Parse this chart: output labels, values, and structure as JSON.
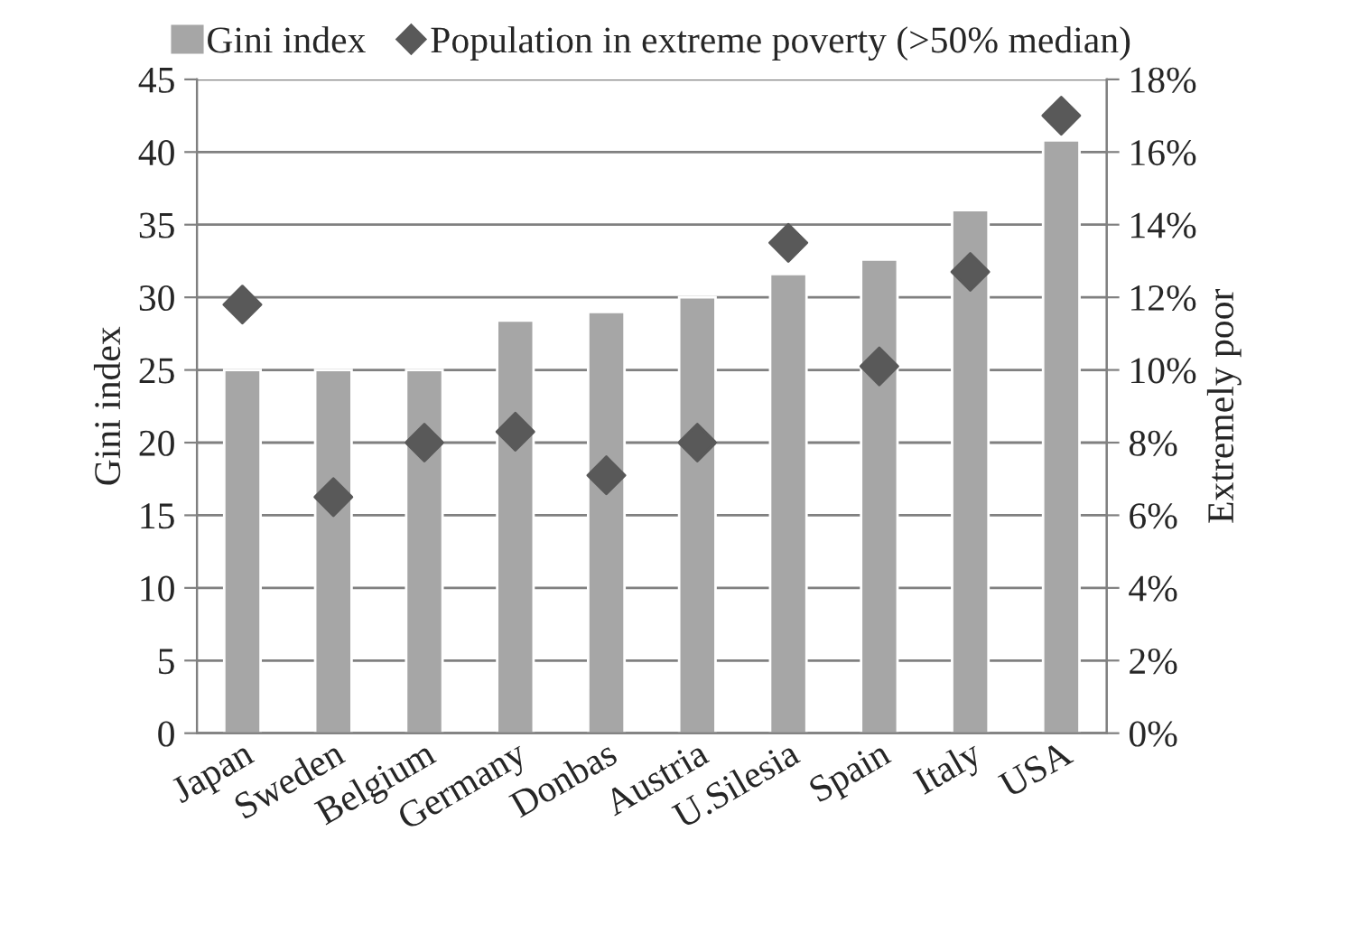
{
  "chart_data": {
    "type": "bar",
    "categories": [
      "Japan",
      "Sweden",
      "Belgium",
      "Germany",
      "Donbas",
      "Austria",
      "U.Silesia",
      "Spain",
      "Italy",
      "USA"
    ],
    "series": [
      {
        "name": "Gini index",
        "color": "#a6a6a6",
        "values": [
          25,
          25,
          25,
          28.4,
          29,
          30,
          31.6,
          32.6,
          36,
          40.8
        ]
      },
      {
        "name": "Population in extreme poverty (>50% median)",
        "type": "scatter",
        "axis": "y2",
        "marker": "diamond",
        "color": "#595959",
        "values": [
          11.8,
          6.5,
          8.0,
          8.3,
          7.1,
          8.0,
          13.5,
          10.1,
          12.7,
          17.0
        ]
      }
    ],
    "ylabel": "Gini index",
    "y2label": "Extremely poor",
    "ylim": [
      0,
      45
    ],
    "yticks": [
      0,
      5,
      10,
      15,
      20,
      25,
      30,
      35,
      40,
      45
    ],
    "y2lim": [
      0,
      18
    ],
    "y2ticks": [
      {
        "value": 0,
        "label": "0%"
      },
      {
        "value": 2,
        "label": "2%"
      },
      {
        "value": 4,
        "label": "4%"
      },
      {
        "value": 6,
        "label": "6%"
      },
      {
        "value": 8,
        "label": "8%"
      },
      {
        "value": 10,
        "label": "10%"
      },
      {
        "value": 12,
        "label": "12%"
      },
      {
        "value": 14,
        "label": "14%"
      },
      {
        "value": 16,
        "label": "16%"
      },
      {
        "value": 18,
        "label": "18%"
      }
    ],
    "grid": "y",
    "legend": "top"
  }
}
